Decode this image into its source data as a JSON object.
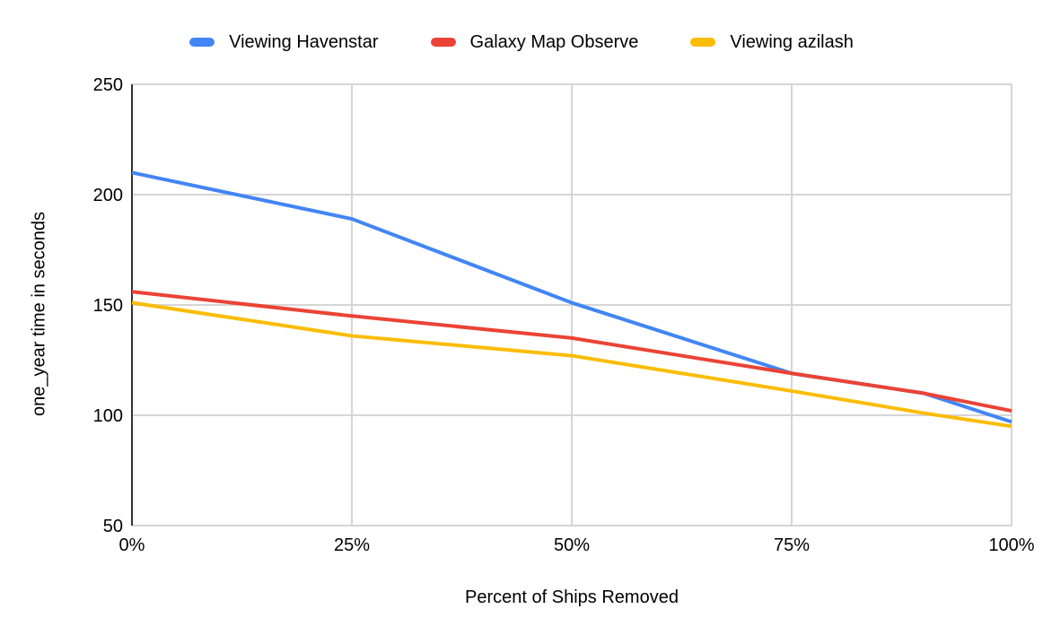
{
  "page": {
    "background": "#ffffff"
  },
  "colors": {
    "gridline": "#d5d5d5",
    "axis_line": "#333333",
    "text": "#000000"
  },
  "chart_data": {
    "type": "line",
    "title": "",
    "xlabel": "Percent of Ships Removed",
    "ylabel": "one_year time in seconds",
    "xlim": [
      0,
      100
    ],
    "ylim": [
      50,
      250
    ],
    "grid": true,
    "legend_position": "top",
    "x": [
      0,
      25,
      50,
      75,
      90,
      100
    ],
    "x_tick_values": [
      0,
      25,
      50,
      75,
      100
    ],
    "x_tick_labels": [
      "0%",
      "25%",
      "50%",
      "75%",
      "100%"
    ],
    "y_tick_values": [
      250,
      200,
      150,
      100,
      50
    ],
    "y_tick_labels": [
      "250",
      "200",
      "150",
      "100",
      "50"
    ],
    "series": [
      {
        "name": "Viewing Havenstar",
        "color": "#4285F4",
        "values": [
          210,
          189,
          151,
          119,
          110,
          97
        ]
      },
      {
        "name": "Galaxy Map Observe",
        "color": "#EA4335",
        "values": [
          156,
          145,
          135,
          119,
          110,
          102
        ]
      },
      {
        "name": "Viewing azilash",
        "color": "#FBBC04",
        "values": [
          151,
          136,
          127,
          111,
          101,
          95
        ]
      }
    ]
  }
}
